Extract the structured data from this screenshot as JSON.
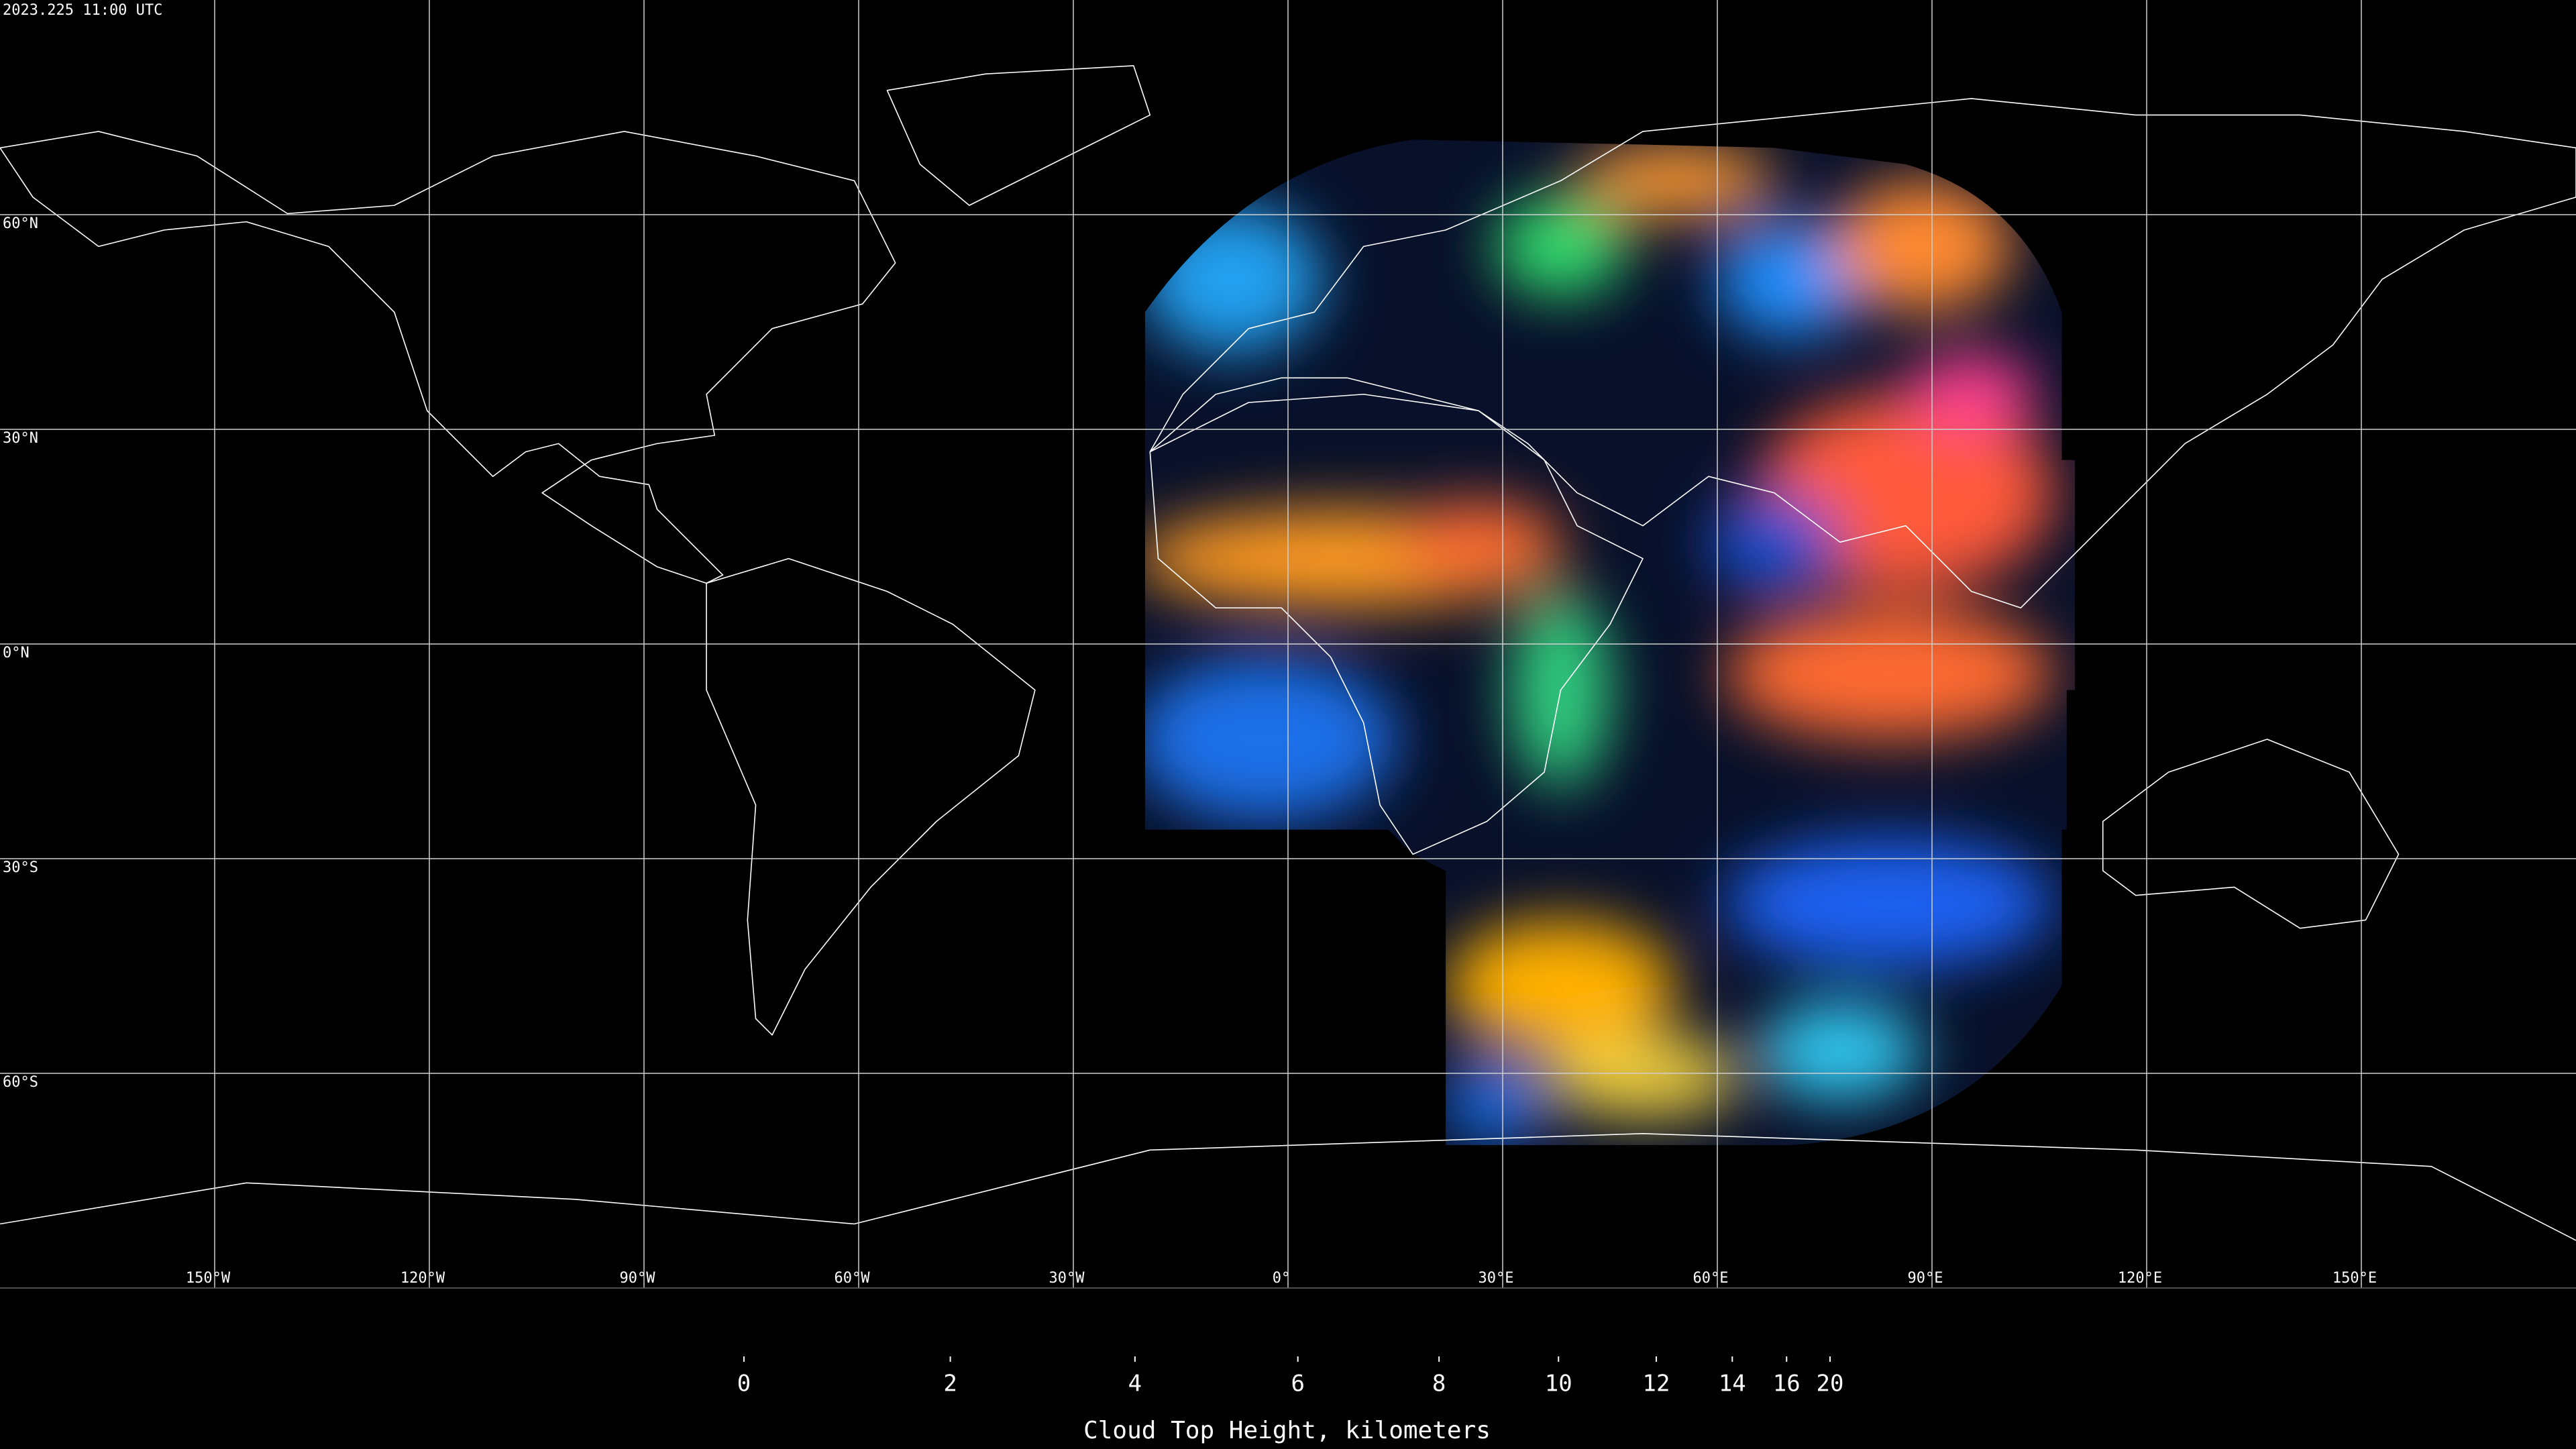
{
  "timestamp": "2023.225 11:00 UTC",
  "map": {
    "projection": "equirectangular",
    "lonlim": [
      -180,
      180
    ],
    "latlim": [
      -90,
      90
    ],
    "lat_lines": [
      {
        "value": 60,
        "label": "60°N"
      },
      {
        "value": 30,
        "label": "30°N"
      },
      {
        "value": 0,
        "label": "0°N"
      },
      {
        "value": -30,
        "label": "30°S"
      },
      {
        "value": -60,
        "label": "60°S"
      }
    ],
    "lon_lines": [
      {
        "value": -150,
        "label": "150°W"
      },
      {
        "value": -120,
        "label": "120°W"
      },
      {
        "value": -90,
        "label": "90°W"
      },
      {
        "value": -60,
        "label": "60°W"
      },
      {
        "value": -30,
        "label": "30°W"
      },
      {
        "value": 0,
        "label": "0°"
      },
      {
        "value": 30,
        "label": "30°E"
      },
      {
        "value": 60,
        "label": "60°E"
      },
      {
        "value": 90,
        "label": "90°E"
      },
      {
        "value": 120,
        "label": "120°E"
      },
      {
        "value": 150,
        "label": "150°E"
      }
    ]
  },
  "colorbar": {
    "clim": [
      0,
      20
    ],
    "ticks": [
      0,
      2,
      4,
      6,
      8,
      10,
      12,
      14,
      16,
      20
    ],
    "label": "Cloud Top Height, kilometers"
  }
}
